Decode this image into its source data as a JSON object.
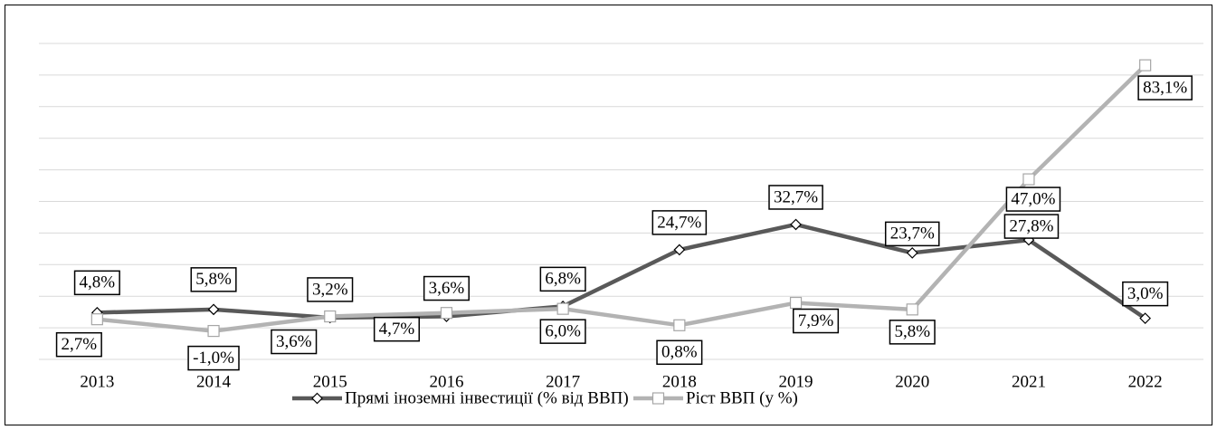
{
  "chart_data": {
    "type": "line",
    "categories": [
      "2013",
      "2014",
      "2015",
      "2016",
      "2017",
      "2018",
      "2019",
      "2020",
      "2021",
      "2022"
    ],
    "series": [
      {
        "name": "Прямі іноземні інвестиції (% від ВВП)",
        "color": "#595959",
        "marker": "diamond",
        "values": [
          4.8,
          5.8,
          3.2,
          3.6,
          6.8,
          24.7,
          32.7,
          23.7,
          27.8,
          3.0
        ],
        "value_labels": [
          "4,8%",
          "5,8%",
          "3,2%",
          "3,6%",
          "6,8%",
          "24,7%",
          "32,7%",
          "23,7%",
          "27,8%",
          "3,0%"
        ]
      },
      {
        "name": "Ріст ВВП (у %)",
        "color": "#b3b3b3",
        "marker": "square",
        "values": [
          2.7,
          -1.0,
          3.6,
          4.7,
          6.0,
          0.8,
          7.9,
          5.8,
          47.0,
          83.1
        ],
        "value_labels": [
          "2,7%",
          "-1,0%",
          "3,6%",
          "4,7%",
          "6,0%",
          "0,8%",
          "7,9%",
          "5,8%",
          "47,0%",
          "83,1%"
        ]
      }
    ],
    "ylim": [
      -10,
      90
    ],
    "yticks": [
      -10,
      0,
      10,
      20,
      30,
      40,
      50,
      60,
      70,
      80,
      90
    ],
    "grid": true,
    "legend": "bottom"
  }
}
